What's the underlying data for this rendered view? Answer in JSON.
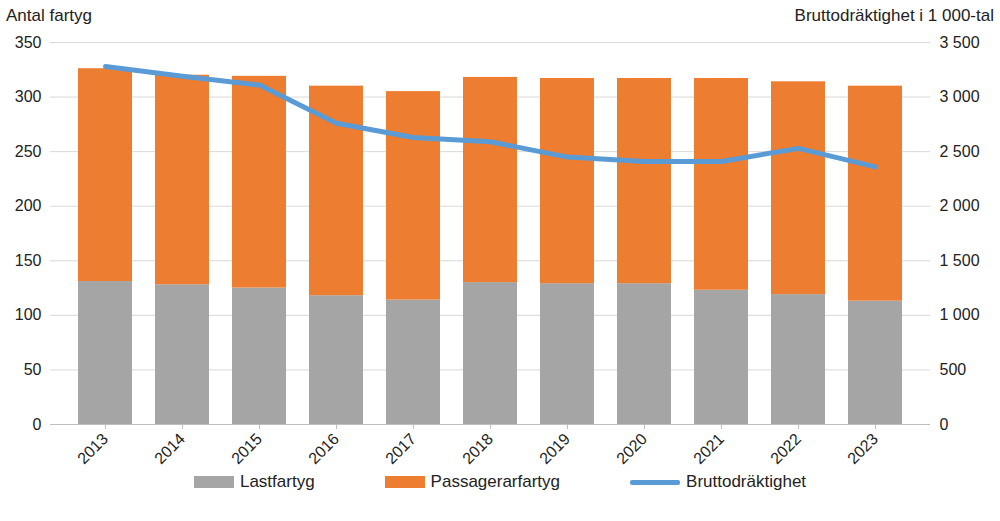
{
  "chart_data": {
    "type": "bar",
    "stacked": true,
    "grid": true,
    "legend": "bottom",
    "ylabel": "Antal fartyg",
    "y2label": "Bruttodräktighet i 1 000-tal",
    "categories": [
      "2013",
      "2014",
      "2015",
      "2016",
      "2017",
      "2018",
      "2019",
      "2020",
      "2021",
      "2022",
      "2023"
    ],
    "series": [
      {
        "name": "Lastfartyg",
        "type": "bar",
        "color": "#a5a5a5",
        "values": [
          131,
          128,
          125,
          118,
          114,
          130,
          129,
          129,
          123,
          119,
          113
        ]
      },
      {
        "name": "Passagerarfartyg",
        "type": "bar",
        "color": "#ed7d31",
        "values": [
          195,
          192,
          194,
          192,
          191,
          188,
          188,
          188,
          194,
          195,
          197
        ]
      },
      {
        "name": "Bruttodräktighet",
        "type": "line",
        "axis": "y2",
        "color": "#5b9bd5",
        "values": [
          3280,
          3190,
          3110,
          2760,
          2630,
          2590,
          2450,
          2410,
          2410,
          2530,
          2360
        ]
      }
    ],
    "ylim": [
      0,
      350
    ],
    "yticks": [
      0,
      50,
      100,
      150,
      200,
      250,
      300,
      350
    ],
    "y2lim": [
      0,
      3500
    ],
    "y2ticks": [
      0,
      500,
      {
        "value": 1000,
        "label": "1 000"
      },
      {
        "value": 1500,
        "label": "1 500"
      },
      {
        "value": 2000,
        "label": "2 000"
      },
      {
        "value": 2500,
        "label": "2 500"
      },
      {
        "value": 3000,
        "label": "3 000"
      },
      {
        "value": 3500,
        "label": "3 500"
      }
    ]
  }
}
